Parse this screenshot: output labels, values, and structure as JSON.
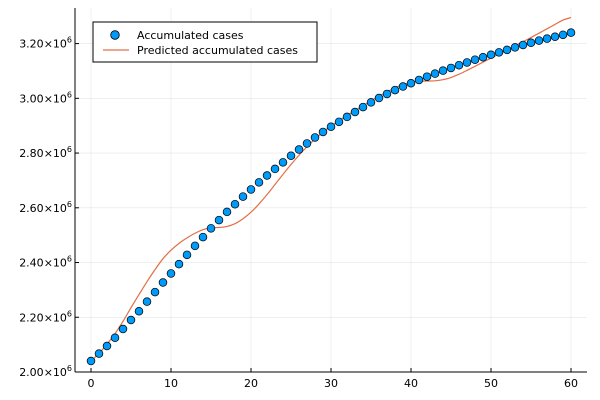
{
  "chart_data": {
    "type": "scatter",
    "title": "",
    "xlabel": "",
    "ylabel": "",
    "xlim": [
      -2,
      62
    ],
    "ylim": [
      2000000,
      3330000
    ],
    "grid": true,
    "legend_position": "top-left",
    "x_ticks": [
      {
        "value": 0,
        "label": "0"
      },
      {
        "value": 10,
        "label": "10"
      },
      {
        "value": 20,
        "label": "20"
      },
      {
        "value": 30,
        "label": "30"
      },
      {
        "value": 40,
        "label": "40"
      },
      {
        "value": 50,
        "label": "50"
      },
      {
        "value": 60,
        "label": "60"
      }
    ],
    "y_ticks": [
      {
        "value": 2000000,
        "mantissa": "2.00",
        "base": "×10",
        "exp": "6"
      },
      {
        "value": 2200000,
        "mantissa": "2.20",
        "base": "×10",
        "exp": "6"
      },
      {
        "value": 2400000,
        "mantissa": "2.40",
        "base": "×10",
        "exp": "6"
      },
      {
        "value": 2600000,
        "mantissa": "2.60",
        "base": "×10",
        "exp": "6"
      },
      {
        "value": 2800000,
        "mantissa": "2.80",
        "base": "×10",
        "exp": "6"
      },
      {
        "value": 3000000,
        "mantissa": "3.00",
        "base": "×10",
        "exp": "6"
      },
      {
        "value": 3200000,
        "mantissa": "3.20",
        "base": "×10",
        "exp": "6"
      }
    ],
    "series": [
      {
        "name": "Accumulated cases",
        "kind": "scatter",
        "color": "#009AFA",
        "x": [
          0,
          1,
          2,
          3,
          4,
          5,
          6,
          7,
          8,
          9,
          10,
          11,
          12,
          13,
          14,
          15,
          16,
          17,
          18,
          19,
          20,
          21,
          22,
          23,
          24,
          25,
          26,
          27,
          28,
          29,
          30,
          31,
          32,
          33,
          34,
          35,
          36,
          37,
          38,
          39,
          40,
          41,
          42,
          43,
          44,
          45,
          46,
          47,
          48,
          49,
          50,
          51,
          52,
          53,
          54,
          55,
          56,
          57,
          58,
          59,
          60
        ],
        "y": [
          2040000,
          2067000,
          2095000,
          2125000,
          2157000,
          2190000,
          2222000,
          2257000,
          2292000,
          2327000,
          2360000,
          2394000,
          2428000,
          2461000,
          2493000,
          2525000,
          2555000,
          2585000,
          2613000,
          2641000,
          2667000,
          2693000,
          2718000,
          2742000,
          2766000,
          2790000,
          2813000,
          2835000,
          2857000,
          2877000,
          2896000,
          2914000,
          2932000,
          2950000,
          2968000,
          2985000,
          3001000,
          3016000,
          3030000,
          3043000,
          3055000,
          3067000,
          3079000,
          3090000,
          3101000,
          3111000,
          3121000,
          3131000,
          3141000,
          3150000,
          3159000,
          3168000,
          3177000,
          3186000,
          3195000,
          3203000,
          3211000,
          3218000,
          3225000,
          3232000,
          3240000
        ]
      },
      {
        "name": "Predicted accumulated cases",
        "kind": "line",
        "color": "#E26F46",
        "x": [
          0,
          1,
          2,
          3,
          4,
          5,
          6,
          7,
          8,
          9,
          10,
          11,
          12,
          13,
          14,
          15,
          16,
          17,
          18,
          19,
          20,
          21,
          22,
          23,
          24,
          25,
          26,
          27,
          28,
          29,
          30,
          31,
          32,
          33,
          34,
          35,
          36,
          37,
          38,
          39,
          40,
          41,
          42,
          43,
          44,
          45,
          46,
          47,
          48,
          49,
          50,
          51,
          52,
          53,
          54,
          55,
          56,
          57,
          58,
          59,
          60
        ],
        "y": [
          2040000,
          2068000,
          2102000,
          2140000,
          2185000,
          2235000,
          2283000,
          2330000,
          2374000,
          2414000,
          2445000,
          2470000,
          2490000,
          2507000,
          2520000,
          2527000,
          2528000,
          2532000,
          2542000,
          2560000,
          2584000,
          2614000,
          2648000,
          2685000,
          2722000,
          2758000,
          2792000,
          2823000,
          2851000,
          2877000,
          2898000,
          2918000,
          2937000,
          2955000,
          2973000,
          2991000,
          3008000,
          3024000,
          3038000,
          3050000,
          3058000,
          3062000,
          3063000,
          3064000,
          3068000,
          3076000,
          3088000,
          3102000,
          3117000,
          3132000,
          3147000,
          3162000,
          3177000,
          3192000,
          3207000,
          3222000,
          3238000,
          3254000,
          3270000,
          3286000,
          3295000
        ]
      }
    ]
  }
}
